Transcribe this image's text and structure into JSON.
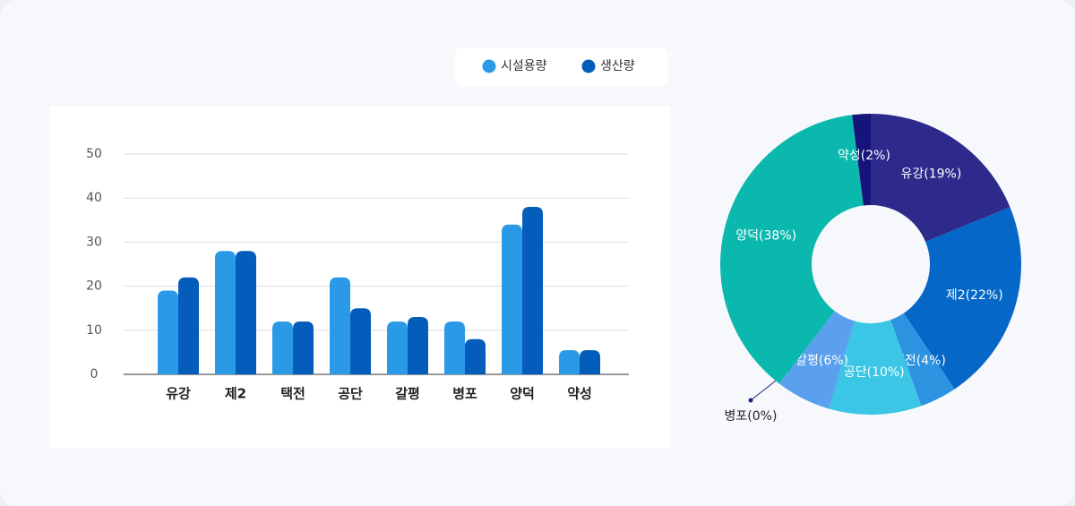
{
  "chart_data": [
    {
      "type": "bar",
      "categories": [
        "유강",
        "제2",
        "택전",
        "공단",
        "갈평",
        "병포",
        "양덕",
        "약성"
      ],
      "series": [
        {
          "name": "시설용량",
          "color": "#2b9ae6",
          "values": [
            19,
            28,
            12,
            22,
            12,
            12,
            34,
            5.5
          ]
        },
        {
          "name": "생산량",
          "color": "#045cbb",
          "values": [
            22,
            28,
            12,
            15,
            13,
            8,
            38,
            5.5
          ]
        }
      ],
      "ylim": [
        0,
        50
      ],
      "yticks": [
        0,
        10,
        20,
        30,
        40,
        50
      ],
      "grid": true,
      "legend": "top"
    },
    {
      "type": "donut",
      "values": [
        19,
        22,
        4,
        10,
        6,
        0,
        38,
        2
      ],
      "value_labels": [
        "유강(19%)",
        "제2(22%)",
        "택전(4%)",
        "공단(10%)",
        "갈평(6%)",
        "병포(0%)",
        "양덕(38%)",
        "약성(2%)"
      ],
      "colors": [
        "#2e2a8c",
        "#0568c8",
        "#2b93e0",
        "#3bc6e6",
        "#5aa0ee",
        "#1a237e",
        "#0bb8ae",
        "#15147a"
      ]
    }
  ]
}
